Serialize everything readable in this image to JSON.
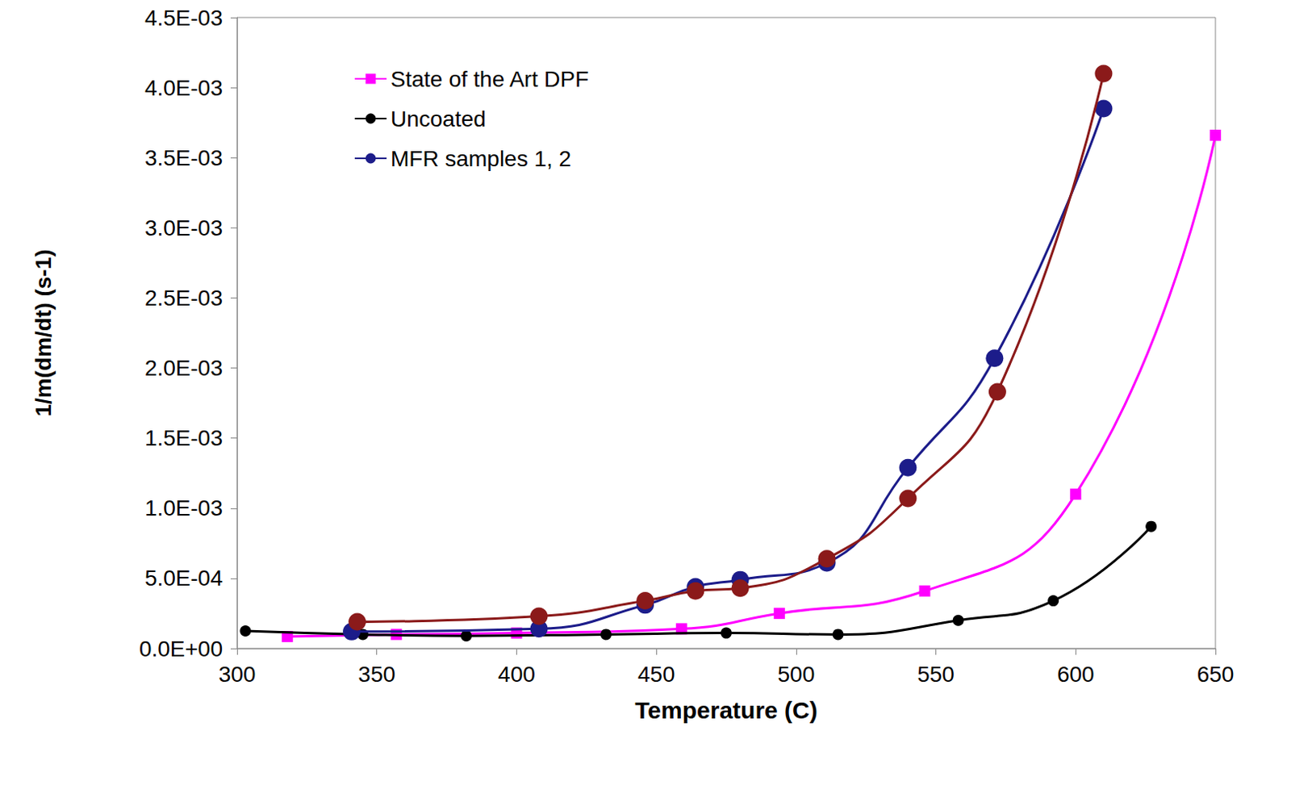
{
  "chart_data": {
    "type": "line",
    "x_label": "Temperature (C)",
    "y_label": "1/m(dm/dt) (s-1)",
    "xlim": [
      300,
      650
    ],
    "xticks": [
      300,
      350,
      400,
      450,
      500,
      550,
      600,
      650
    ],
    "ylim": [
      0,
      0.0045
    ],
    "yticks": [
      {
        "value": 0,
        "label": "0.0E+00"
      },
      {
        "value": 0.0005,
        "label": "5.0E-04"
      },
      {
        "value": 0.001,
        "label": "1.0E-03"
      },
      {
        "value": 0.0015,
        "label": "1.5E-03"
      },
      {
        "value": 0.002,
        "label": "2.0E-03"
      },
      {
        "value": 0.0025,
        "label": "2.5E-03"
      },
      {
        "value": 0.003,
        "label": "3.0E-03"
      },
      {
        "value": 0.0035,
        "label": "3.5E-03"
      },
      {
        "value": 0.004,
        "label": "4.0E-03"
      },
      {
        "value": 0.0045,
        "label": "4.5E-03"
      }
    ],
    "grid": false,
    "legend": "upper left",
    "series": [
      {
        "name": "State of the Art DPF",
        "color": "#ff00ff",
        "marker": "square",
        "x": [
          318,
          357,
          400,
          459,
          494,
          546,
          600,
          650
        ],
        "values": [
          8.5e-05,
          0.0001,
          0.00011,
          0.00014,
          0.00025,
          0.00041,
          0.0011,
          0.00366
        ]
      },
      {
        "name": "Uncoated",
        "color": "#000000",
        "marker": "circle",
        "x": [
          303,
          345,
          382,
          432,
          475,
          515,
          558,
          592,
          627
        ],
        "values": [
          0.000125,
          0.0001,
          9e-05,
          0.0001,
          0.00011,
          0.0001,
          0.0002,
          0.00034,
          0.00087
        ]
      },
      {
        "name": "MFR samples 1, 2",
        "color": "#1c1c8a",
        "marker": "circle",
        "x": [
          341,
          408,
          446,
          464,
          480,
          511,
          540,
          571,
          610
        ],
        "values": [
          0.00012,
          0.00014,
          0.00031,
          0.00044,
          0.00049,
          0.00061,
          0.00129,
          0.00207,
          0.00385
        ]
      },
      {
        "name": "MFR samples 1, 2",
        "color": "#8b1a1a",
        "marker": "circle",
        "x": [
          343,
          408,
          446,
          464,
          480,
          511,
          540,
          572,
          610
        ],
        "values": [
          0.00019,
          0.00023,
          0.00034,
          0.00041,
          0.00043,
          0.00064,
          0.00107,
          0.00183,
          0.0041
        ]
      }
    ]
  }
}
